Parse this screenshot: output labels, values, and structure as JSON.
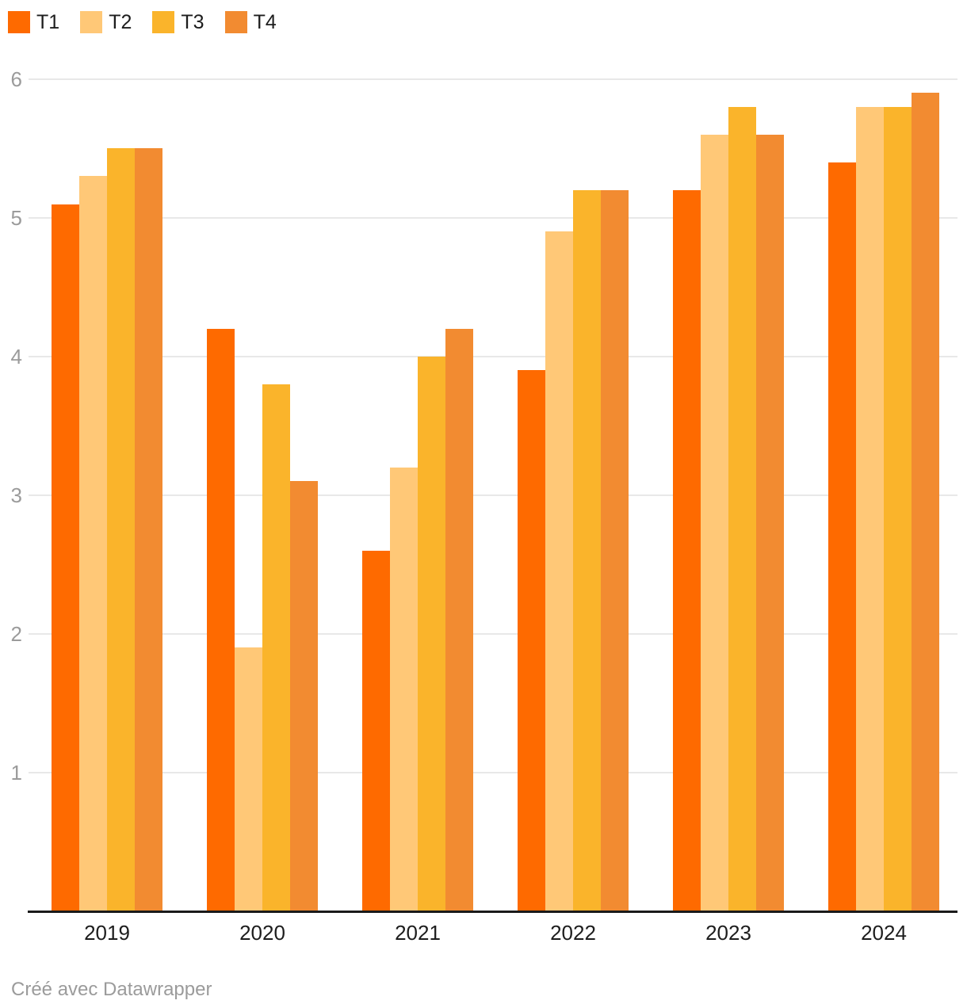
{
  "footer": {
    "text": "Créé avec Datawrapper"
  },
  "colors": {
    "background": "#ffffff",
    "axis_line": "#1a1a1a",
    "gridline": "#e8e8e8",
    "y_tick_label": "#9b9b9b",
    "category_label": "#1d1d1d",
    "footer_text": "#9b9b9b"
  },
  "chart_data": {
    "type": "bar",
    "subtype": "grouped-column",
    "title": "",
    "xlabel": "",
    "ylabel": "",
    "categories": [
      "2019",
      "2020",
      "2021",
      "2022",
      "2023",
      "2024"
    ],
    "series": [
      {
        "name": "T1",
        "color": "#FE6A00",
        "values": [
          5.1,
          4.2,
          2.6,
          3.9,
          5.2,
          5.4
        ]
      },
      {
        "name": "T2",
        "color": "#FFC877",
        "values": [
          5.3,
          1.9,
          3.2,
          4.9,
          5.6,
          5.8
        ]
      },
      {
        "name": "T3",
        "color": "#FAB42B",
        "values": [
          5.5,
          3.8,
          4.0,
          5.2,
          5.8,
          5.8
        ]
      },
      {
        "name": "T4",
        "color": "#F28B31",
        "values": [
          5.5,
          3.1,
          4.2,
          5.2,
          5.6,
          5.9
        ]
      }
    ],
    "y_ticks": [
      1,
      2,
      3,
      4,
      5,
      6
    ],
    "ylim": [
      0,
      6
    ],
    "grid": true,
    "legend_position": "top-left"
  }
}
